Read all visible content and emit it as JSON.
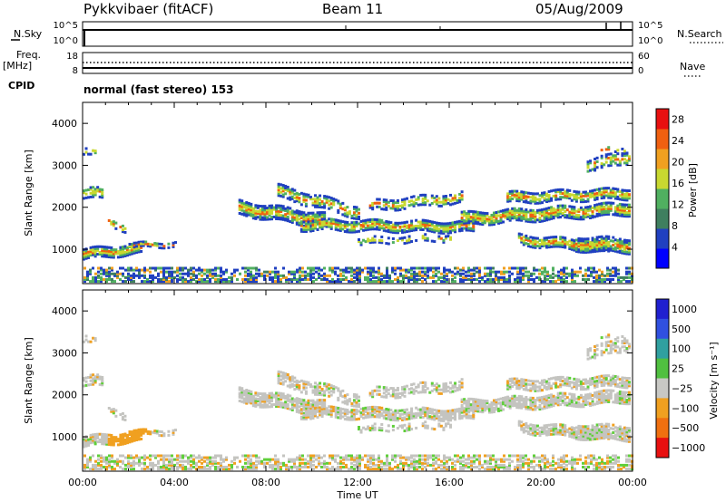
{
  "header": {
    "radar": "Pykkvibaer (fitACF)",
    "beam": "Beam 11",
    "date": "05/Aug/2009"
  },
  "left_labels": {
    "nsky": "N.Sky",
    "freq_line1": "Freq.",
    "freq_line2": "[MHz]",
    "cpid": "CPID"
  },
  "right_labels": {
    "nsearch": "N.Search",
    "nave": "Nave"
  },
  "nsky_ticks": [
    "10^5",
    "10^0"
  ],
  "nsearch_ticks": [
    "10^5",
    "10^0"
  ],
  "freq_ticks": [
    "18",
    "8"
  ],
  "nave_ticks": [
    "60",
    "0"
  ],
  "cpid_text": "normal (fast stereo) 153",
  "colors": {
    "scatter_blue": "#1e3fb0",
    "scatter_green": "#3f9a5a",
    "scatter_orange": "#f08c1e",
    "ground_gray": "#c4c4c0",
    "vel_green": "#5fcf3a"
  },
  "chart_data": [
    {
      "type": "heatmap",
      "title": "Power",
      "ylabel": "Slant Range [km]",
      "xlabel": "",
      "x_range_hours": [
        0,
        24
      ],
      "ylim": [
        180,
        4500
      ],
      "x_ticks": [
        "00:00",
        "04:00",
        "08:00",
        "12:00",
        "16:00",
        "20:00",
        "00:00"
      ],
      "y_ticks": [
        1000,
        2000,
        3000,
        4000
      ],
      "colorbar": {
        "label": "Power [dB]",
        "ticks": [
          4,
          8,
          12,
          16,
          20,
          24,
          28
        ],
        "range": [
          0,
          30
        ],
        "colors": [
          "#0000ff",
          "#2040c0",
          "#3f7f5f",
          "#50b060",
          "#c8d830",
          "#f0a020",
          "#f06010",
          "#e81010"
        ]
      }
    },
    {
      "type": "heatmap",
      "title": "Velocity",
      "ylabel": "Slant Range [km]",
      "xlabel": "Time UT",
      "x_range_hours": [
        0,
        24
      ],
      "ylim": [
        180,
        4500
      ],
      "x_ticks": [
        "00:00",
        "04:00",
        "08:00",
        "12:00",
        "16:00",
        "20:00",
        "00:00"
      ],
      "y_ticks": [
        1000,
        2000,
        3000,
        4000
      ],
      "colorbar": {
        "label": "Velocity [m s⁻¹]",
        "ticks": [
          "1000",
          "500",
          "100",
          "25",
          "−25",
          "−100",
          "−500",
          "−1000"
        ],
        "colors": [
          "#2020d0",
          "#3050e0",
          "#30a0a0",
          "#50c040",
          "#c8c8c4",
          "#f0a020",
          "#f07010",
          "#e81010"
        ]
      }
    }
  ]
}
